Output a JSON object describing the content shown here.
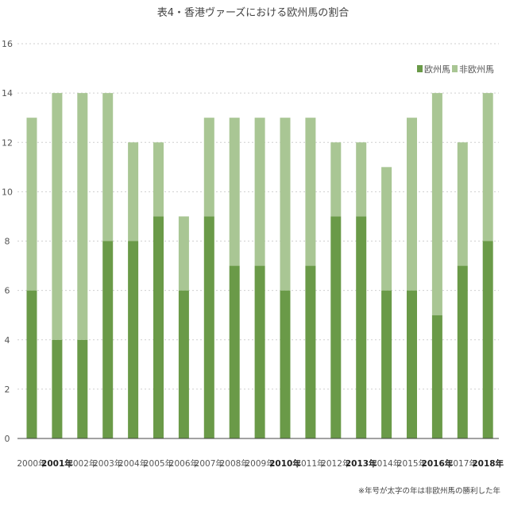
{
  "chart_data": {
    "type": "bar",
    "stacked": true,
    "title": "表4・香港ヴァーズにおける欧州馬の割合",
    "categories": [
      "2000年",
      "2001年",
      "2002年",
      "2003年",
      "2004年",
      "2005年",
      "2006年",
      "2007年",
      "2008年",
      "2009年",
      "2010年",
      "2011年",
      "2012年",
      "2013年",
      "2014年",
      "2015年",
      "2016年",
      "2017年",
      "2018年"
    ],
    "bold_categories": [
      "2001年",
      "2010年",
      "2013年",
      "2016年",
      "2018年"
    ],
    "series": [
      {
        "name": "欧州馬",
        "color": "#6a9a48",
        "values": [
          6,
          4,
          4,
          8,
          8,
          9,
          6,
          9,
          7,
          7,
          6,
          7,
          9,
          9,
          6,
          6,
          5,
          7,
          8
        ]
      },
      {
        "name": "非欧州馬",
        "color": "#a9c694",
        "values": [
          7,
          10,
          10,
          6,
          4,
          3,
          3,
          4,
          6,
          6,
          7,
          6,
          3,
          3,
          5,
          7,
          9,
          5,
          6
        ]
      }
    ],
    "ylim": [
      0,
      16
    ],
    "yticks": [
      "0",
      "2",
      "4",
      "6",
      "8",
      "10",
      "12",
      "14",
      "16"
    ],
    "grid": true,
    "legend_position": "top-right",
    "footnote": "※年号が太字の年は非欧州馬の勝利した年"
  }
}
